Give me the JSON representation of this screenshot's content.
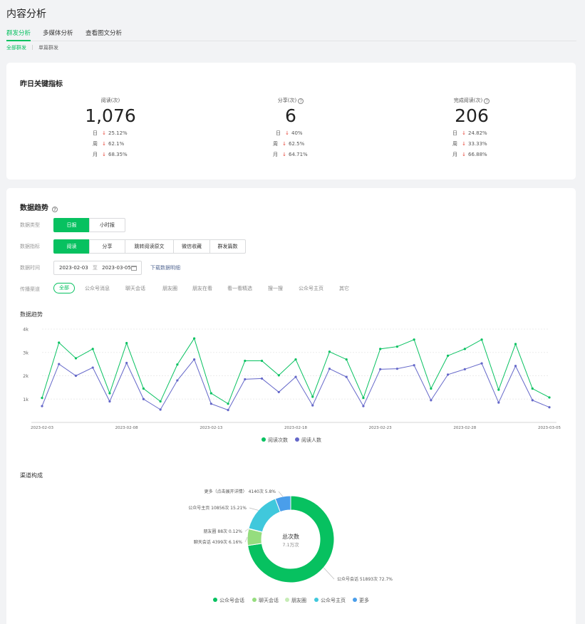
{
  "page_title": "内容分析",
  "tabs": [
    "群发分析",
    "多媒体分析",
    "查看图文分析"
  ],
  "subtabs": [
    "全部群发",
    "单篇群发"
  ],
  "key_metrics": {
    "title": "昨日关键指标",
    "items": [
      {
        "label": "阅读(次)",
        "help": false,
        "value": "1,076",
        "compare": [
          {
            "label": "日",
            "pct": "25.12%"
          },
          {
            "label": "周",
            "pct": "62.1%"
          },
          {
            "label": "月",
            "pct": "68.35%"
          }
        ]
      },
      {
        "label": "分享(次)",
        "help": true,
        "value": "6",
        "compare": [
          {
            "label": "日",
            "pct": "40%"
          },
          {
            "label": "周",
            "pct": "62.5%"
          },
          {
            "label": "月",
            "pct": "64.71%"
          }
        ]
      },
      {
        "label": "完成阅读(次)",
        "help": true,
        "value": "206",
        "compare": [
          {
            "label": "日",
            "pct": "24.82%"
          },
          {
            "label": "周",
            "pct": "33.33%"
          },
          {
            "label": "月",
            "pct": "66.88%"
          }
        ]
      }
    ],
    "down_arrow": "↓",
    "help_glyph": "?"
  },
  "trend": {
    "title": "数据趋势",
    "filters": {
      "type_label": "数据类型",
      "type_options": [
        "日报",
        "小时报"
      ],
      "type_selected": "日报",
      "metric_label": "数据指标",
      "metric_options": [
        "阅读",
        "分享",
        "跳转阅读原文",
        "微信收藏",
        "群发篇数"
      ],
      "metric_selected": "阅读",
      "date_label": "数据时间",
      "date_start": "2023-02-03",
      "date_sep": "至",
      "date_end": "2023-03-05",
      "download_label": "下载数据明细",
      "channel_label": "传播渠道",
      "channels": [
        "全部",
        "公众号消息",
        "聊天会话",
        "朋友圈",
        "朋友在看",
        "看一看精选",
        "搜一搜",
        "公众号主页",
        "其它"
      ],
      "channel_selected": "全部"
    },
    "chart_label": "数据趋势",
    "distribution_label": "渠道构成"
  },
  "colors": {
    "accent": "#07c160",
    "down_red": "#e53e30",
    "series_reads": "#07c160",
    "series_users": "#6467c9",
    "pie": [
      "#07c160",
      "#95dd7e",
      "#c6ecb6",
      "#40c8dc",
      "#4a9eea"
    ]
  },
  "chart_data": [
    {
      "type": "line",
      "title": "数据趋势",
      "x": [
        "2023-02-03",
        "2023-02-04",
        "2023-02-05",
        "2023-02-06",
        "2023-02-07",
        "2023-02-08",
        "2023-02-09",
        "2023-02-10",
        "2023-02-11",
        "2023-02-12",
        "2023-02-13",
        "2023-02-14",
        "2023-02-15",
        "2023-02-16",
        "2023-02-17",
        "2023-02-18",
        "2023-02-19",
        "2023-02-20",
        "2023-02-21",
        "2023-02-22",
        "2023-02-23",
        "2023-02-24",
        "2023-02-25",
        "2023-02-26",
        "2023-02-27",
        "2023-02-28",
        "2023-03-01",
        "2023-03-02",
        "2023-03-03",
        "2023-03-04",
        "2023-03-05"
      ],
      "x_ticks": [
        "2023-02-03",
        "2023-02-08",
        "2023-02-13",
        "2023-02-18",
        "2023-02-23",
        "2023-02-28",
        "2023-03-05"
      ],
      "y_ticks": [
        "1k",
        "2k",
        "3k",
        "4k"
      ],
      "ylim": [
        0,
        4000
      ],
      "grid": true,
      "legend_position": "bottom",
      "series": [
        {
          "name": "阅读次数",
          "values": [
            1050,
            3420,
            2750,
            3150,
            1250,
            3400,
            1450,
            900,
            2480,
            3600,
            1250,
            800,
            2640,
            2640,
            2020,
            2700,
            1100,
            3030,
            2700,
            1050,
            3150,
            3250,
            3550,
            1450,
            2860,
            3150,
            3550,
            1400,
            3360,
            1450,
            1070
          ]
        },
        {
          "name": "阅读人数",
          "values": [
            700,
            2500,
            2000,
            2350,
            900,
            2550,
            1000,
            550,
            1800,
            2700,
            800,
            530,
            1850,
            1880,
            1300,
            1950,
            730,
            2300,
            1950,
            700,
            2280,
            2300,
            2450,
            950,
            2050,
            2280,
            2530,
            850,
            2420,
            950,
            650
          ]
        }
      ]
    },
    {
      "type": "pie",
      "title": "总次数",
      "center_value": "7.1万次",
      "legend_position": "bottom",
      "slices": [
        {
          "name": "公众号会话",
          "value": 51893,
          "label": "公众号会话 51893次 72.7%"
        },
        {
          "name": "聊天会话",
          "value": 4399,
          "label": "聊天会话 4399次 6.16%"
        },
        {
          "name": "朋友圈",
          "value": 88,
          "label": "朋友圈 88次 0.12%"
        },
        {
          "name": "公众号主页",
          "value": 10856,
          "label": "公众号主页 10856次 15.21%"
        },
        {
          "name": "更多",
          "value": 4140,
          "label": "更多（点击展开详情） 4140次 5.8%"
        }
      ]
    }
  ]
}
